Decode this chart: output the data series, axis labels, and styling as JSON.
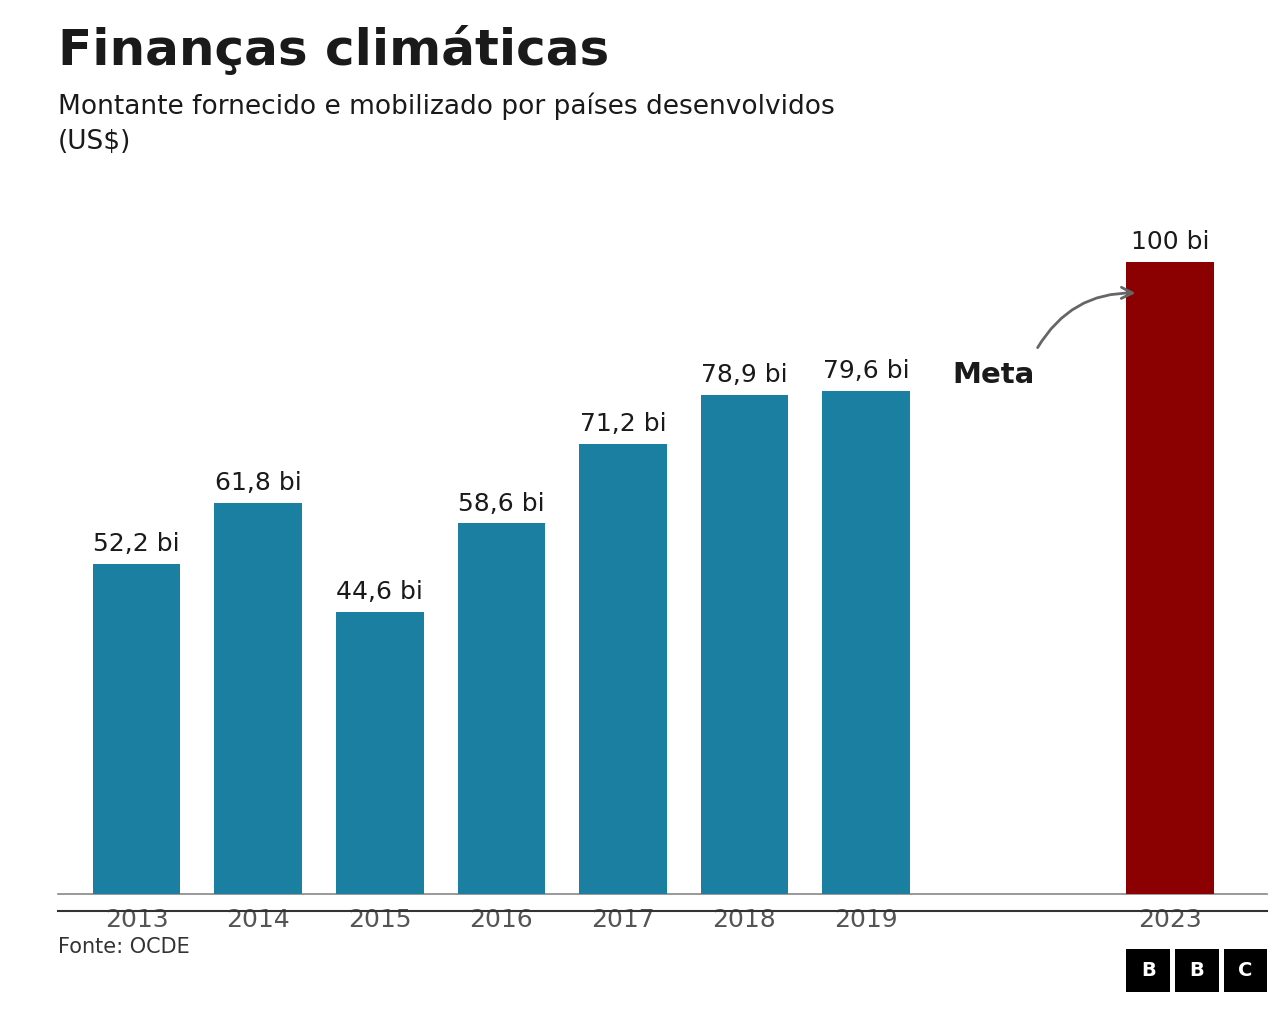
{
  "title": "Finanças climáticas",
  "subtitle_line1": "Montante fornecido e mobilizado por países desenvolvidos",
  "subtitle_line2": "(US$)",
  "categories": [
    "2013",
    "2014",
    "2015",
    "2016",
    "2017",
    "2018",
    "2019",
    "2023"
  ],
  "values": [
    52.2,
    61.8,
    44.6,
    58.6,
    71.2,
    78.9,
    79.6,
    100
  ],
  "labels": [
    "52,2 bi",
    "61,8 bi",
    "44,6 bi",
    "58,6 bi",
    "71,2 bi",
    "78,9 bi",
    "79,6 bi",
    "100 bi"
  ],
  "bar_colors": [
    "#1a7fa0",
    "#1a7fa0",
    "#1a7fa0",
    "#1a7fa0",
    "#1a7fa0",
    "#1a7fa0",
    "#1a7fa0",
    "#8b0000"
  ],
  "background_color": "#ffffff",
  "title_fontsize": 36,
  "subtitle_fontsize": 19,
  "label_fontsize": 18,
  "tick_fontsize": 18,
  "source_text": "Fonte: OCDE",
  "meta_label": "Meta",
  "arrow_color": "#666666",
  "ylim": [
    0,
    115
  ],
  "bar_width": 0.72,
  "footer_line_color": "#333333",
  "text_color": "#1a1a1a"
}
